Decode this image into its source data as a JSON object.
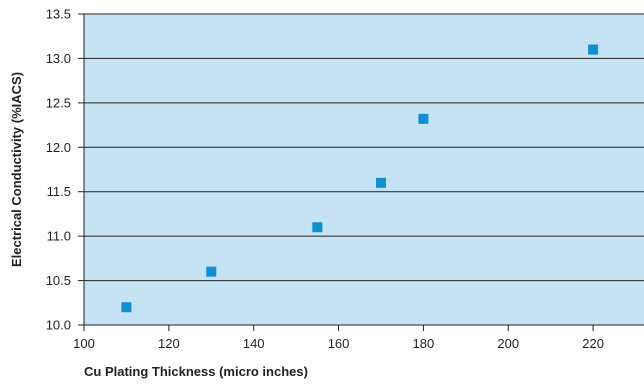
{
  "chart_data": {
    "type": "scatter",
    "title": "",
    "xlabel": "Cu Plating Thickness (micro inches)",
    "ylabel": "Electrical Conductivity (%IACS)",
    "xlim": [
      100,
      232
    ],
    "ylim": [
      10.0,
      13.5
    ],
    "x_ticks": [
      "100",
      "120",
      "140",
      "160",
      "180",
      "200",
      "220"
    ],
    "y_ticks": [
      "10.0",
      "10.5",
      "11.0",
      "11.5",
      "12.0",
      "12.5",
      "13.0",
      "13.5"
    ],
    "grid": "horizontal",
    "legend": "none",
    "plot_background": "#c6e3f5",
    "grid_color": "#231f20",
    "marker_color": "#0f8fd0",
    "marker": "square",
    "series": [
      {
        "x": [
          110,
          130,
          155,
          170,
          180,
          220
        ],
        "y": [
          10.2,
          10.6,
          11.1,
          11.6,
          12.32,
          13.1
        ]
      }
    ]
  }
}
